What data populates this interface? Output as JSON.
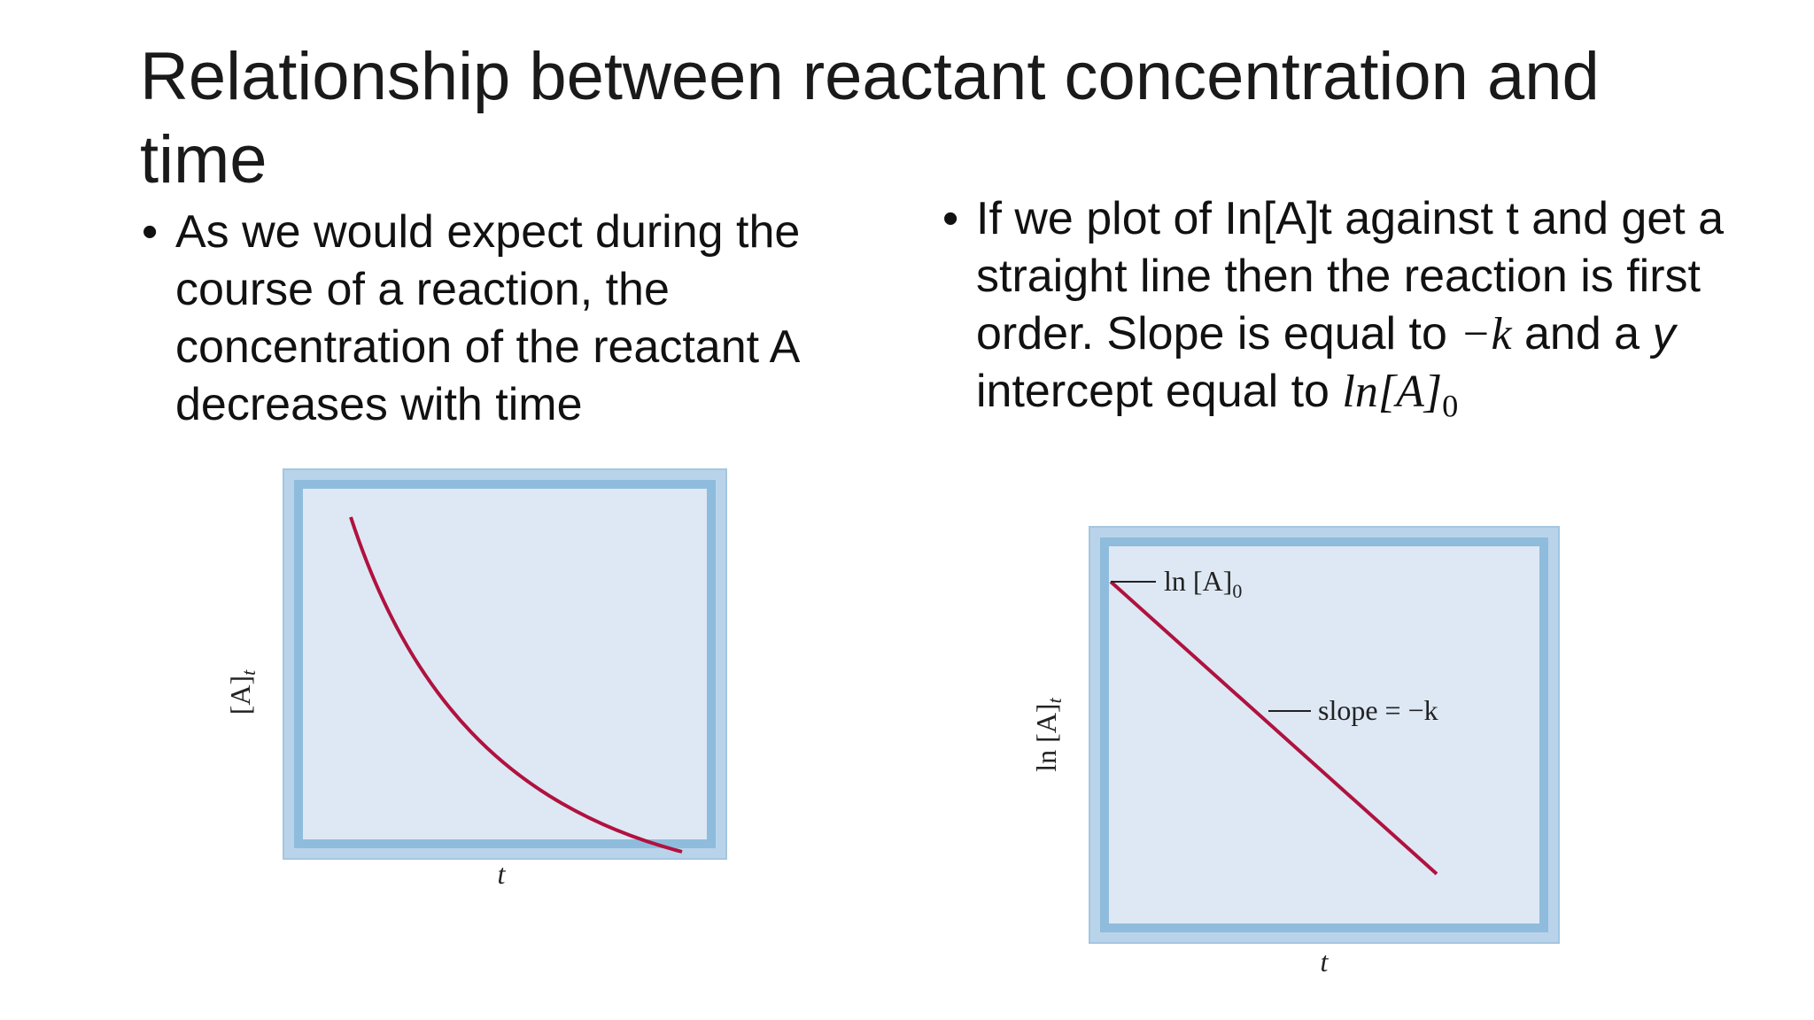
{
  "slide": {
    "title": "Relationship between reactant concentration and time"
  },
  "bullets": {
    "left": {
      "marker": "•",
      "text": "As we would expect during the course of a reaction, the concentration of the reactant A decreases with time"
    },
    "right": {
      "marker": "•",
      "text_before": "If we plot of In[A]t against t and get a straight line then the reaction is first order. Slope is equal to ",
      "neg_k": "−k",
      "text_middle": " and a ",
      "y": "y",
      "text_after": " intercept equal to ",
      "ln_a0_main": "ln[A]",
      "ln_a0_sub": "0"
    }
  },
  "figures": {
    "left": {
      "ylabel_main": "[A]",
      "ylabel_sub": "t",
      "xlabel": "t"
    },
    "right": {
      "ylabel_main": "ln [A]",
      "ylabel_sub": "t",
      "xlabel": "t",
      "intercept_label_main": "ln [A]",
      "intercept_label_sub": "0",
      "slope_label": "slope = −k"
    }
  },
  "colors": {
    "panel_fill": "#dde8f4",
    "panel_border": "#9ec3de",
    "curve": "#b0123f"
  }
}
